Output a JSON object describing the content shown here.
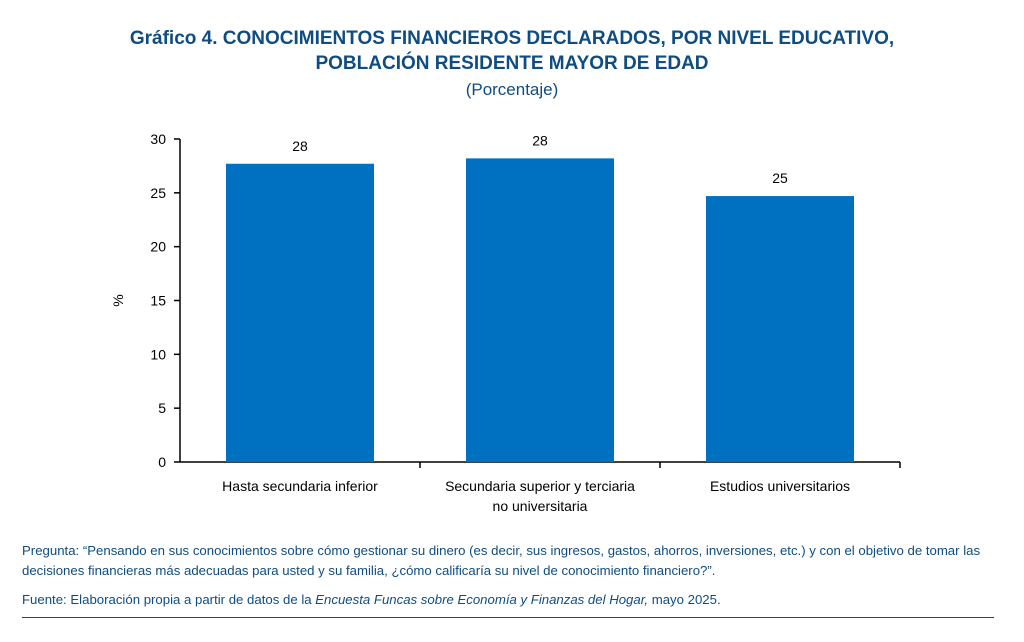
{
  "title_line1": "Gráfico 4. CONOCIMIENTOS FINANCIEROS DECLARADOS, POR NIVEL EDUCATIVO,",
  "title_line2": "POBLACIÓN RESIDENTE MAYOR DE EDAD",
  "subtitle": "(Porcentaje)",
  "chart_data": {
    "type": "bar",
    "categories": [
      [
        "Hasta secundaria inferior"
      ],
      [
        "Secundaria superior y terciaria",
        "no universitaria"
      ],
      [
        "Estudios universitarios"
      ]
    ],
    "values": [
      27.7,
      28.2,
      24.7
    ],
    "data_labels": [
      "28",
      "28",
      "25"
    ],
    "ylabel": "%",
    "ylim": [
      0,
      30
    ],
    "yticks": [
      "0",
      "5",
      "10",
      "15",
      "20",
      "25",
      "30"
    ],
    "bar_color": "#0070c0",
    "grid": false,
    "legend": "none"
  },
  "notes": {
    "question": "Pregunta: “Pensando en sus conocimientos sobre cómo gestionar su dinero (es decir, sus ingresos, gastos, ahorros, inversiones, etc.) y con el objetivo de tomar las decisiones financieras más adecuadas para usted y su familia, ¿cómo calificaría su nivel de conocimiento financiero?”.",
    "source_prefix": "Fuente: Elaboración propia a partir de datos de la ",
    "source_italic": "Encuesta Funcas sobre Economía y Finanzas del Hogar,",
    "source_suffix": " mayo 2025."
  }
}
